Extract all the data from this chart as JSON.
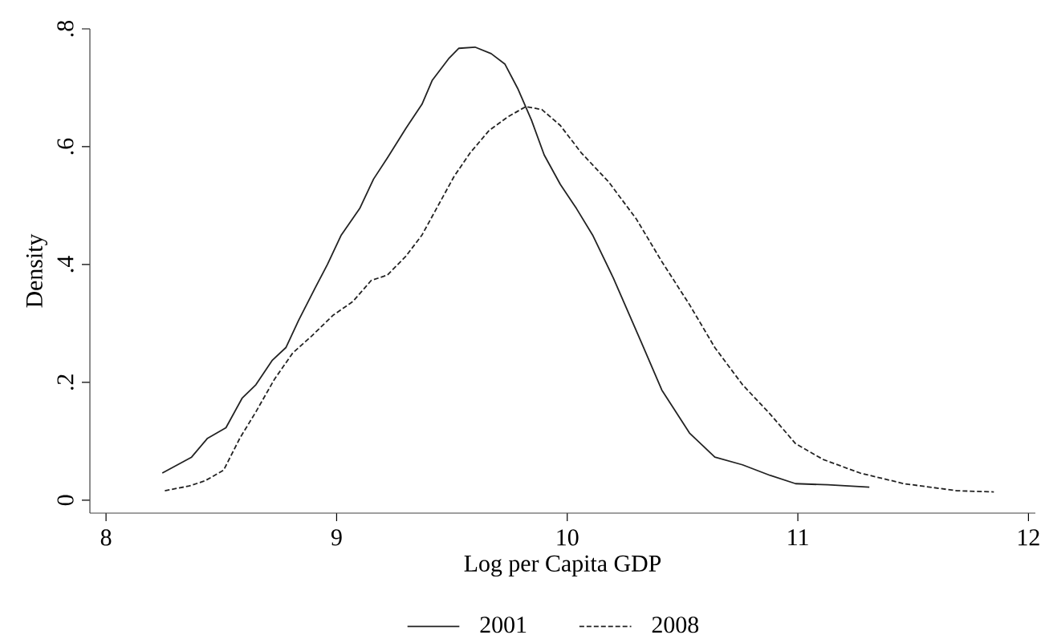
{
  "chart_data": {
    "type": "line",
    "xlabel": "Log per Capita GDP",
    "ylabel": "Density",
    "xlim": [
      7.93,
      12.03
    ],
    "ylim": [
      -0.022,
      0.8
    ],
    "xticks": [
      8,
      9,
      10,
      11,
      12
    ],
    "yticks": [
      {
        "value": 0,
        "label": "0"
      },
      {
        "value": 0.2,
        "label": ".2"
      },
      {
        "value": 0.4,
        "label": ".4"
      },
      {
        "value": 0.6,
        "label": ".6"
      },
      {
        "value": 0.8,
        "label": ".8"
      }
    ],
    "legend": "bottom",
    "grid": false,
    "marker": "none",
    "series": [
      {
        "name": "2001",
        "color": "#222222",
        "line_style": "solid",
        "x": [
          8.244,
          8.371,
          8.44,
          8.52,
          8.59,
          8.65,
          8.72,
          8.78,
          8.835,
          8.905,
          8.96,
          9.02,
          9.1,
          9.16,
          9.22,
          9.3,
          9.37,
          9.415,
          9.485,
          9.53,
          9.6,
          9.67,
          9.73,
          9.785,
          9.845,
          9.9,
          9.97,
          10.04,
          10.11,
          10.2,
          10.32,
          10.41,
          10.53,
          10.64,
          10.76,
          10.88,
          10.99,
          11.13,
          11.31
        ],
        "values": [
          0.046,
          0.073,
          0.105,
          0.123,
          0.173,
          0.196,
          0.237,
          0.259,
          0.305,
          0.359,
          0.4,
          0.45,
          0.495,
          0.545,
          0.581,
          0.631,
          0.672,
          0.713,
          0.749,
          0.767,
          0.769,
          0.758,
          0.74,
          0.699,
          0.645,
          0.586,
          0.536,
          0.495,
          0.45,
          0.377,
          0.269,
          0.187,
          0.114,
          0.073,
          0.06,
          0.042,
          0.028,
          0.026,
          0.022
        ]
      },
      {
        "name": "2008",
        "color": "#222222",
        "line_style": "dashed",
        "x": [
          8.255,
          8.36,
          8.43,
          8.51,
          8.58,
          8.65,
          8.73,
          8.81,
          8.89,
          8.985,
          9.07,
          9.15,
          9.22,
          9.3,
          9.37,
          9.44,
          9.51,
          9.58,
          9.66,
          9.74,
          9.82,
          9.89,
          9.97,
          10.06,
          10.18,
          10.3,
          10.41,
          10.53,
          10.64,
          10.76,
          10.88,
          10.99,
          11.11,
          11.27,
          11.46,
          11.69,
          11.85
        ],
        "values": [
          0.016,
          0.024,
          0.033,
          0.051,
          0.105,
          0.15,
          0.205,
          0.25,
          0.278,
          0.314,
          0.337,
          0.373,
          0.382,
          0.414,
          0.45,
          0.5,
          0.55,
          0.59,
          0.627,
          0.65,
          0.668,
          0.663,
          0.636,
          0.59,
          0.54,
          0.477,
          0.405,
          0.332,
          0.259,
          0.196,
          0.146,
          0.096,
          0.069,
          0.046,
          0.028,
          0.016,
          0.014
        ]
      }
    ]
  }
}
